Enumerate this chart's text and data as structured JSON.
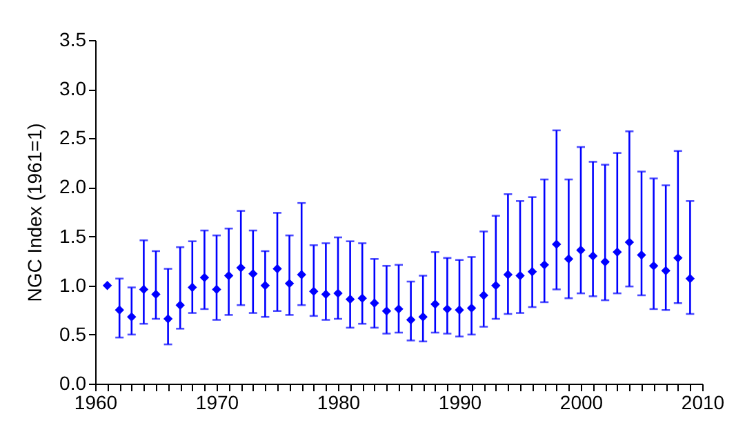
{
  "chart_data": {
    "type": "scatter",
    "ylabel": "NGC Index (1961=1)",
    "marker": "diamond",
    "grid": false,
    "x": [
      1961,
      1962,
      1963,
      1964,
      1965,
      1966,
      1967,
      1968,
      1969,
      1970,
      1971,
      1972,
      1973,
      1974,
      1975,
      1976,
      1977,
      1978,
      1979,
      1980,
      1981,
      1982,
      1983,
      1984,
      1985,
      1986,
      1987,
      1988,
      1989,
      1990,
      1991,
      1992,
      1993,
      1994,
      1995,
      1996,
      1997,
      1998,
      1999,
      2000,
      2001,
      2002,
      2003,
      2004,
      2005,
      2006,
      2007,
      2008,
      2009
    ],
    "series": [
      {
        "color": "#0000ff",
        "values": [
          1.0,
          0.75,
          0.68,
          0.96,
          0.91,
          0.66,
          0.8,
          0.98,
          1.08,
          0.96,
          1.1,
          1.18,
          1.12,
          1.0,
          1.17,
          1.02,
          1.11,
          0.94,
          0.91,
          0.92,
          0.86,
          0.87,
          0.82,
          0.74,
          0.76,
          0.65,
          0.68,
          0.81,
          0.76,
          0.75,
          0.77,
          0.9,
          1.0,
          1.11,
          1.1,
          1.14,
          1.21,
          1.42,
          1.27,
          1.36,
          1.3,
          1.24,
          1.34,
          1.44,
          1.31,
          1.2,
          1.15,
          1.28,
          1.07
        ],
        "errors": [
          null,
          [
            0.47,
            1.07
          ],
          [
            0.5,
            0.98
          ],
          [
            0.61,
            1.46
          ],
          [
            0.66,
            1.35
          ],
          [
            0.4,
            1.17
          ],
          [
            0.56,
            1.39
          ],
          [
            0.72,
            1.45
          ],
          [
            0.76,
            1.56
          ],
          [
            0.65,
            1.51
          ],
          [
            0.7,
            1.58
          ],
          [
            0.8,
            1.76
          ],
          [
            0.72,
            1.56
          ],
          [
            0.68,
            1.35
          ],
          [
            0.74,
            1.74
          ],
          [
            0.7,
            1.51
          ],
          [
            0.8,
            1.84
          ],
          [
            0.69,
            1.41
          ],
          [
            0.65,
            1.43
          ],
          [
            0.66,
            1.49
          ],
          [
            0.57,
            1.45
          ],
          [
            0.61,
            1.43
          ],
          [
            0.57,
            1.27
          ],
          [
            0.51,
            1.2
          ],
          [
            0.52,
            1.21
          ],
          [
            0.44,
            1.04
          ],
          [
            0.43,
            1.1
          ],
          [
            0.52,
            1.34
          ],
          [
            0.51,
            1.28
          ],
          [
            0.48,
            1.26
          ],
          [
            0.5,
            1.29
          ],
          [
            0.58,
            1.55
          ],
          [
            0.66,
            1.71
          ],
          [
            0.71,
            1.93
          ],
          [
            0.72,
            1.86
          ],
          [
            0.78,
            1.9
          ],
          [
            0.83,
            2.08
          ],
          [
            0.96,
            2.58
          ],
          [
            0.87,
            2.08
          ],
          [
            0.92,
            2.41
          ],
          [
            0.89,
            2.26
          ],
          [
            0.85,
            2.23
          ],
          [
            0.92,
            2.35
          ],
          [
            0.99,
            2.57
          ],
          [
            0.9,
            2.16
          ],
          [
            0.76,
            2.09
          ],
          [
            0.75,
            2.02
          ],
          [
            0.82,
            2.37
          ],
          [
            0.71,
            1.86
          ]
        ]
      }
    ],
    "xlim": [
      1960,
      2010
    ],
    "xticks": [
      1960,
      {
        "value": 1961,
        "label": null
      },
      {
        "value": 1962,
        "label": null
      },
      {
        "value": 1963,
        "label": null
      },
      {
        "value": 1964,
        "label": null
      },
      {
        "value": 1965,
        "label": null
      },
      {
        "value": 1966,
        "label": null
      },
      {
        "value": 1967,
        "label": null
      },
      {
        "value": 1968,
        "label": null
      },
      {
        "value": 1969,
        "label": null
      },
      1970,
      {
        "value": 1971,
        "label": null
      },
      {
        "value": 1972,
        "label": null
      },
      {
        "value": 1973,
        "label": null
      },
      {
        "value": 1974,
        "label": null
      },
      {
        "value": 1975,
        "label": null
      },
      {
        "value": 1976,
        "label": null
      },
      {
        "value": 1977,
        "label": null
      },
      {
        "value": 1978,
        "label": null
      },
      {
        "value": 1979,
        "label": null
      },
      1980,
      {
        "value": 1981,
        "label": null
      },
      {
        "value": 1982,
        "label": null
      },
      {
        "value": 1983,
        "label": null
      },
      {
        "value": 1984,
        "label": null
      },
      {
        "value": 1985,
        "label": null
      },
      {
        "value": 1986,
        "label": null
      },
      {
        "value": 1987,
        "label": null
      },
      {
        "value": 1988,
        "label": null
      },
      {
        "value": 1989,
        "label": null
      },
      1990,
      {
        "value": 1991,
        "label": null
      },
      {
        "value": 1992,
        "label": null
      },
      {
        "value": 1993,
        "label": null
      },
      {
        "value": 1994,
        "label": null
      },
      {
        "value": 1995,
        "label": null
      },
      {
        "value": 1996,
        "label": null
      },
      {
        "value": 1997,
        "label": null
      },
      {
        "value": 1998,
        "label": null
      },
      {
        "value": 1999,
        "label": null
      },
      2000,
      {
        "value": 2001,
        "label": null
      },
      {
        "value": 2002,
        "label": null
      },
      {
        "value": 2003,
        "label": null
      },
      {
        "value": 2004,
        "label": null
      },
      {
        "value": 2005,
        "label": null
      },
      {
        "value": 2006,
        "label": null
      },
      {
        "value": 2007,
        "label": null
      },
      {
        "value": 2008,
        "label": null
      },
      {
        "value": 2009,
        "label": null
      },
      2010
    ],
    "ylim": [
      0,
      3.5
    ],
    "yticks": [
      {
        "value": 0,
        "label": "0.0"
      },
      {
        "value": 0.5,
        "label": "0.5"
      },
      {
        "value": 1,
        "label": "1.0"
      },
      {
        "value": 1.5,
        "label": "1.5"
      },
      {
        "value": 2,
        "label": "2.0"
      },
      {
        "value": 2.5,
        "label": "2.5"
      },
      {
        "value": 3,
        "label": "3.0"
      },
      {
        "value": 3.5,
        "label": "3.5"
      }
    ]
  }
}
